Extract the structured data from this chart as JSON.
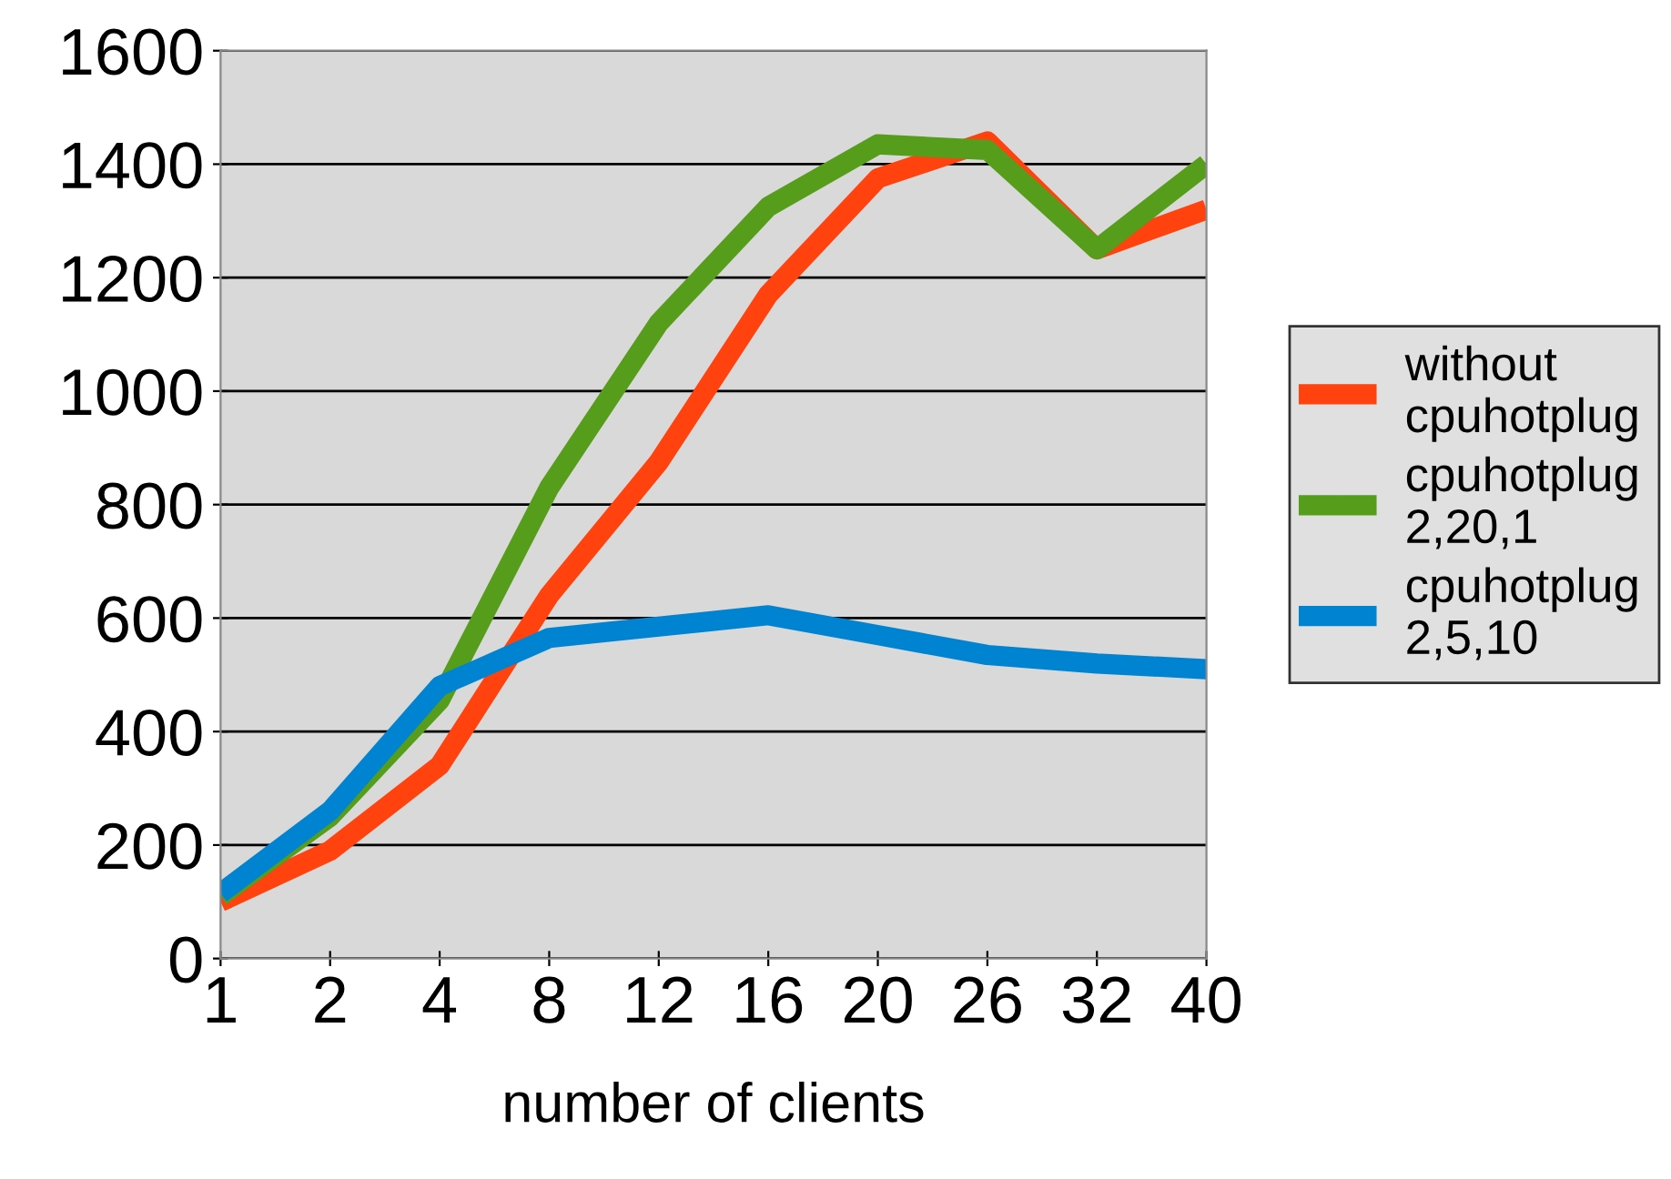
{
  "chart_data": {
    "type": "line",
    "xlabel": "number of clients",
    "categories": [
      "1",
      "2",
      "4",
      "8",
      "12",
      "16",
      "20",
      "26",
      "32",
      "40"
    ],
    "series": [
      {
        "name": "without\ncpuhotplug",
        "color": "#ff420e",
        "values": [
          100,
          190,
          340,
          640,
          875,
          1170,
          1375,
          1440,
          1250,
          1320
        ]
      },
      {
        "name": "cpuhotplug\n2,20,1",
        "color": "#579d1c",
        "values": [
          110,
          250,
          455,
          830,
          1120,
          1325,
          1435,
          1425,
          1250,
          1400
        ]
      },
      {
        "name": "cpuhotplug\n2,5,10",
        "color": "#0084d1",
        "values": [
          115,
          260,
          480,
          565,
          585,
          605,
          570,
          535,
          520,
          510
        ]
      }
    ],
    "ylim": [
      0,
      1600
    ],
    "yticks": [
      0,
      200,
      400,
      600,
      800,
      1000,
      1200,
      1400,
      1600
    ],
    "grid": "y",
    "legend": "right",
    "marker": "none",
    "line_style": "solid"
  }
}
